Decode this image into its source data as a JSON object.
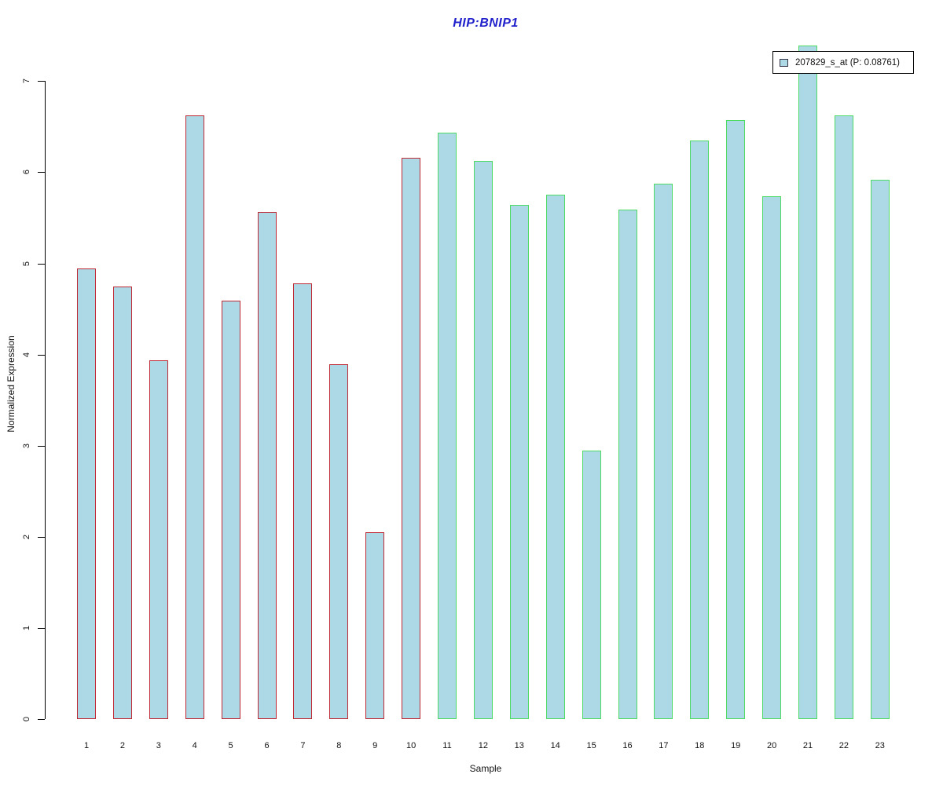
{
  "chart_data": {
    "type": "bar",
    "title": "HIP:BNIP1",
    "xlabel": "Sample",
    "ylabel": "Normalized Expression",
    "ylim": [
      0,
      7.5
    ],
    "yticks": [
      0,
      1,
      2,
      3,
      4,
      5,
      6,
      7
    ],
    "grid": false,
    "categories": [
      "1",
      "2",
      "3",
      "4",
      "5",
      "6",
      "7",
      "8",
      "9",
      "10",
      "11",
      "12",
      "13",
      "14",
      "15",
      "16",
      "17",
      "18",
      "19",
      "20",
      "21",
      "22",
      "23"
    ],
    "values": [
      4.94,
      4.75,
      3.94,
      6.62,
      4.59,
      5.56,
      4.78,
      3.89,
      2.05,
      6.16,
      6.43,
      6.12,
      5.64,
      5.75,
      2.95,
      5.59,
      5.87,
      6.35,
      6.57,
      5.74,
      7.39,
      6.62,
      5.92
    ],
    "series": [
      {
        "name": "207829_s_at",
        "sample_range": "1-10",
        "border_color": "#bf2933"
      },
      {
        "name": "207829_s_at",
        "sample_range": "11-23",
        "border_color": "#4ddb63"
      }
    ],
    "group_split_index": 10,
    "bar_fill_color": "#add8e6",
    "title_color": "#2222cc",
    "legend": {
      "label": "207829_s_at (P: 0.08761)",
      "position": "top-right",
      "swatch_fill": "#add8e6"
    }
  }
}
